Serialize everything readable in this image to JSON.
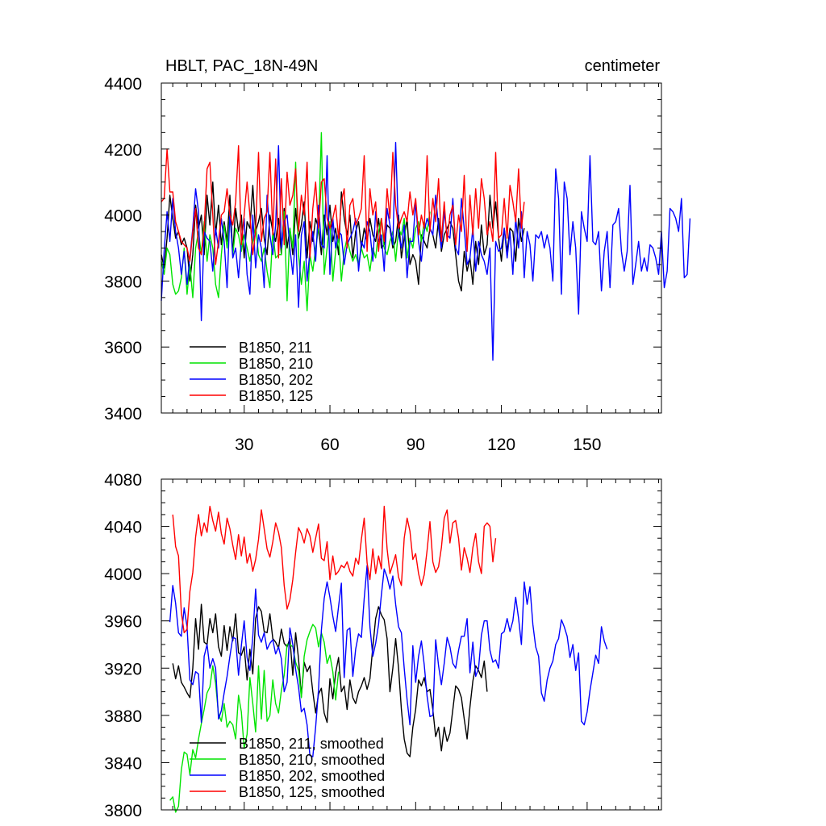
{
  "header": {
    "title": "HBLT, PAC_18N-49N",
    "units": "centimeter"
  },
  "chart_data": [
    {
      "type": "line",
      "title": "HBLT, PAC_18N-49N",
      "units": "centimeter",
      "xlim": [
        1,
        176
      ],
      "ylim": [
        3400,
        4400
      ],
      "xticks": [
        30,
        60,
        90,
        120,
        150
      ],
      "yticks": [
        3400,
        3600,
        3800,
        4000,
        4200,
        4400
      ],
      "legend_position": "lower-left",
      "series": [
        {
          "name": "B1850, 211",
          "color": "#000000",
          "x_start": 1,
          "values": [
            3880,
            3840,
            3930,
            4060,
            3990,
            3930,
            3950,
            3910,
            3930,
            3900,
            3800,
            3880,
            4030,
            3960,
            4000,
            3880,
            4060,
            3970,
            4100,
            3940,
            4030,
            3910,
            3980,
            3920,
            4060,
            3880,
            4020,
            3950,
            4000,
            3870,
            3980,
            3960,
            4090,
            3950,
            3980,
            4020,
            3930,
            3880,
            4000,
            3950,
            3920,
            3990,
            3880,
            4020,
            3900,
            3960,
            3880,
            4020,
            3930,
            3970,
            4040,
            3870,
            3980,
            3920,
            3990,
            3960,
            3880,
            4000,
            3940,
            4030,
            3920,
            3960,
            3880,
            4070,
            3990,
            3940,
            4000,
            3870,
            3950,
            3980,
            3900,
            3960,
            3920,
            3990,
            3940,
            3920,
            3990,
            3900,
            3910,
            3970,
            3960,
            3900,
            3920,
            4000,
            3870,
            3930,
            3990,
            3850,
            3880,
            3860,
            3790,
            3940,
            3920,
            3900,
            3960,
            3940,
            3900,
            3990,
            3890,
            3940,
            3960,
            3980,
            3960,
            3880,
            3800,
            3770,
            3890,
            3830,
            3870,
            3790,
            3920,
            3850,
            3970,
            3880,
            3910,
            4060,
            3960,
            4040,
            3930,
            3860,
            3960,
            3890,
            3960,
            3950,
            3860,
            3990,
            3920,
            3960
          ]
        },
        {
          "name": "B1850, 210",
          "color": "#00e400",
          "x_start": 1,
          "values": [
            3860,
            3820,
            3900,
            3880,
            3790,
            3760,
            3770,
            3810,
            3900,
            3760,
            3850,
            3750,
            3900,
            3950,
            3880,
            3980,
            3860,
            3940,
            3900,
            3790,
            3750,
            3880,
            3970,
            3900,
            4000,
            3880,
            3960,
            3940,
            3890,
            3940,
            3900,
            3860,
            3920,
            3970,
            3880,
            3860,
            3900,
            3830,
            3780,
            3950,
            3870,
            3880,
            3880,
            4010,
            3740,
            3960,
            3900,
            4160,
            3880,
            3790,
            3860,
            3710,
            3880,
            3830,
            3900,
            3960,
            4250,
            3820,
            3900,
            3980,
            3800,
            3890,
            3930,
            3800,
            3890,
            3930,
            3890,
            3860,
            3880,
            3850,
            3900,
            3870,
            3880,
            3830,
            3900,
            3870,
            3950,
            3990,
            3900,
            3880,
            3920,
            3950,
            3860,
            3960,
            3940,
            3990,
            3870,
            3930,
            3900,
            3960,
            3980,
            3920,
            3980,
            3950,
            4010
          ]
        },
        {
          "name": "B1850, 202",
          "color": "#0000ff",
          "x_start": 1,
          "values": [
            3740,
            3890,
            4010,
            3920,
            4050,
            3950,
            3900,
            3820,
            3890,
            3790,
            3870,
            3960,
            4080,
            4010,
            3680,
            3950,
            3930,
            3920,
            3830,
            3960,
            3900,
            3990,
            3920,
            3780,
            4010,
            3870,
            3900,
            3810,
            3920,
            3990,
            3820,
            3760,
            4000,
            3840,
            3940,
            3900,
            3780,
            4060,
            3940,
            3880,
            3970,
            4210,
            3900,
            3980,
            4000,
            3900,
            3820,
            3940,
            3720,
            3940,
            3980,
            3800,
            3890,
            3950,
            3860,
            4030,
            3910,
            3900,
            4180,
            3820,
            3990,
            3900,
            3950,
            3940,
            3850,
            3910,
            3930,
            3950,
            3990,
            3830,
            3920,
            3900,
            3980,
            3950,
            3860,
            4010,
            3920,
            3940,
            3830,
            4020,
            3970,
            3910,
            4220,
            3940,
            3900,
            3970,
            3810,
            3920,
            3920,
            4040,
            3920,
            3860,
            3950,
            3990,
            3960,
            3940,
            4060,
            3960,
            3900,
            4010,
            3940,
            3930,
            4050,
            3900,
            3880,
            4050,
            3960,
            3850,
            3870,
            3960,
            3830,
            3920,
            3880,
            3860,
            3820,
            3900,
            3560,
            3920,
            3890,
            3900,
            3960,
            3870,
            3950,
            3820,
            3990,
            3900,
            4010,
            3810,
            3950,
            3910,
            3800,
            3940,
            3930,
            3950,
            3900,
            3940,
            3900,
            3800,
            4140,
            4050,
            3760,
            4100,
            4050,
            3880,
            3980,
            3900,
            3700,
            4010,
            3960,
            3920,
            4180,
            3920,
            3910,
            3950,
            3770,
            3890,
            3950,
            3780,
            3970,
            3980,
            4020,
            3890,
            3830,
            3890,
            4090,
            3790,
            3850,
            3920,
            3830,
            3870,
            3830,
            3910,
            3900,
            3870,
            3820,
            3950,
            3780,
            3830,
            4020,
            4010,
            3990,
            3950,
            4050,
            3810,
            3820,
            3990
          ]
        },
        {
          "name": "B1850, 125",
          "color": "#ff0000",
          "x_start": 1,
          "values": [
            4040,
            4050,
            4200,
            4070,
            4070,
            3980,
            3950,
            3920,
            3910,
            3900,
            3860,
            3950,
            4020,
            3900,
            3880,
            3960,
            4140,
            4160,
            4000,
            3850,
            3920,
            4000,
            4010,
            4080,
            4000,
            3970,
            4040,
            4210,
            3910,
            4000,
            4100,
            4000,
            3880,
            3950,
            4190,
            3920,
            3990,
            4010,
            4190,
            3940,
            4170,
            3870,
            4110,
            3910,
            4130,
            4030,
            4060,
            4140,
            3950,
            4060,
            4000,
            4160,
            3870,
            4020,
            4100,
            3960,
            4100,
            4110,
            3990,
            3960,
            3990,
            4030,
            3930,
            4040,
            4080,
            3900,
            4030,
            4050,
            3970,
            3990,
            4020,
            4180,
            3890,
            4080,
            4000,
            4040,
            3890,
            3990,
            3920,
            4080,
            3990,
            4190,
            4030,
            3960,
            3990,
            4010,
            3980,
            4070,
            4000,
            4050,
            3940,
            4000,
            3960,
            4180,
            3950,
            4050,
            3980,
            4110,
            3920,
            4040,
            3920,
            4000,
            4030,
            3910,
            4000,
            3950,
            4120,
            3890,
            4060,
            3940,
            4080,
            3960,
            4110,
            4050,
            3940,
            3980,
            3920,
            4190,
            3930,
            3940,
            4050,
            3930,
            4090,
            4040,
            3980,
            4140,
            3960,
            4040
          ]
        }
      ]
    },
    {
      "type": "line",
      "xlim": [
        1,
        176
      ],
      "ylim": [
        3800,
        4080
      ],
      "yticks": [
        3800,
        3840,
        3880,
        3920,
        3960,
        4000,
        4040,
        4080
      ],
      "legend_position": "lower-left",
      "series": [
        {
          "name": "B1850, 211, smoothed",
          "color": "#000000",
          "x_start": 5,
          "values": [
            3924,
            3911,
            3922,
            3908,
            3904,
            3899,
            3895,
            3920,
            3962,
            3936,
            3974,
            3942,
            3940,
            3962,
            3950,
            3966,
            3938,
            3930,
            3956,
            3935,
            3955,
            3943,
            3966,
            3933,
            3931,
            3938,
            3910,
            3936,
            3915,
            3962,
            3972,
            3968,
            3951,
            3950,
            3966,
            3945,
            3942,
            3937,
            3953,
            3941,
            3938,
            3945,
            3914,
            3950,
            3928,
            3896,
            3925,
            3917,
            3922,
            3900,
            3882,
            3898,
            3903,
            3882,
            3874,
            3911,
            3894,
            3916,
            3929,
            3900,
            3905,
            3885,
            3910,
            3895,
            3890,
            3900,
            3905,
            3912,
            3902,
            3911,
            3938,
            3962,
            3972,
            3965,
            3961,
            3945,
            3900,
            3920,
            3945,
            3920,
            3885,
            3860,
            3848,
            3845,
            3870,
            3885,
            3910,
            3905,
            3912,
            3900,
            3902,
            3885,
            3862,
            3870,
            3850,
            3870,
            3858,
            3865,
            3885,
            3905,
            3902,
            3895,
            3877,
            3860,
            3887,
            3909,
            3922,
            3918,
            3912,
            3926,
            3900
          ]
        },
        {
          "name": "B1850, 210, smoothed",
          "color": "#00e400",
          "x_start": 4,
          "values": [
            3808,
            3811,
            3798,
            3803,
            3834,
            3849,
            3847,
            3830,
            3851,
            3844,
            3860,
            3873,
            3885,
            3899,
            3904,
            3922,
            3907,
            3881,
            3875,
            3890,
            3870,
            3875,
            3872,
            3860,
            3897,
            3883,
            3852,
            3864,
            3912,
            3890,
            3866,
            3922,
            3877,
            3918,
            3875,
            3880,
            3910,
            3890,
            3882,
            3901,
            3914,
            3940,
            3940,
            3938,
            3925,
            3918,
            3895,
            3930,
            3944,
            3951,
            3957,
            3954,
            3938,
            3950,
            3942,
            3924,
            3931,
            3917,
            3893,
            3917
          ]
        },
        {
          "name": "B1850, 202, smoothed",
          "color": "#0000ff",
          "x_start": 4,
          "values": [
            3959,
            3990,
            3975,
            3950,
            3947,
            3971,
            3955,
            3910,
            3906,
            3917,
            3915,
            3874,
            3930,
            3940,
            3920,
            3928,
            3920,
            3877,
            3884,
            3899,
            3913,
            3930,
            3946,
            3945,
            3914,
            3939,
            3960,
            3929,
            3918,
            3947,
            3987,
            3948,
            3942,
            3950,
            3936,
            3941,
            3944,
            3932,
            3938,
            3928,
            3900,
            3908,
            3954,
            3940,
            3919,
            3904,
            3883,
            3886,
            3872,
            3846,
            3845,
            3870,
            3902,
            3952,
            3979,
            3993,
            3980,
            3964,
            3951,
            3972,
            3992,
            3912,
            3952,
            3954,
            3913,
            3936,
            3949,
            3946,
            3979,
            4007,
            3955,
            3930,
            3941,
            3957,
            3982,
            4004,
            3997,
            3987,
            3998,
            3974,
            3955,
            3950,
            3920,
            3893,
            3872,
            3939,
            3908,
            3930,
            3943,
            3923,
            3896,
            3879,
            3880,
            3944,
            3922,
            3906,
            3924,
            3946,
            3938,
            3924,
            3920,
            3935,
            3947,
            3947,
            3962,
            3916,
            3942,
            3913,
            3920,
            3948,
            3960,
            3960,
            3935,
            3925,
            3927,
            3920,
            3949,
            3951,
            3962,
            3951,
            3960,
            3980,
            3962,
            3940,
            3993,
            3974,
            3989,
            3957,
            3938,
            3930,
            3899,
            3892,
            3910,
            3920,
            3926,
            3940,
            3945,
            3961,
            3955,
            3947,
            3929,
            3940,
            3918,
            3933,
            3875,
            3872,
            3883,
            3901,
            3916,
            3931,
            3924,
            3955,
            3943,
            3936
          ]
        },
        {
          "name": "B1850, 125, smoothed",
          "color": "#ff0000",
          "x_start": 5,
          "values": [
            4050,
            4023,
            4015,
            3967,
            3950,
            3953,
            3985,
            4001,
            4031,
            4050,
            4032,
            4043,
            4035,
            4057,
            4045,
            4036,
            4052,
            4034,
            4025,
            4047,
            4038,
            4024,
            4012,
            4033,
            4015,
            4031,
            4009,
            4017,
            4002,
            4012,
            4029,
            4054,
            4038,
            4021,
            4014,
            4027,
            4043,
            4035,
            4022,
            3990,
            3970,
            3978,
            3995,
            4018,
            4039,
            4034,
            4026,
            4038,
            4032,
            4018,
            4030,
            4042,
            4013,
            4011,
            4027,
            3995,
            4015,
            3999,
            4002,
            4007,
            4005,
            4010,
            4002,
            3998,
            4013,
            4008,
            4029,
            4047,
            4009,
            3995,
            4021,
            4000,
            4015,
            4004,
            4057,
            4021,
            4000,
            4008,
            4016,
            3997,
            3990,
            4030,
            4047,
            4036,
            4012,
            4017,
            4000,
            3990,
            3999,
            4020,
            4044,
            4010,
            4001,
            4006,
            4022,
            4047,
            4054,
            4026,
            4043,
            4045,
            4030,
            4003,
            4022,
            4013,
            4001,
            4022,
            4034,
            4010,
            4000,
            4040,
            4043,
            4040,
            4010,
            4030
          ]
        }
      ]
    }
  ]
}
